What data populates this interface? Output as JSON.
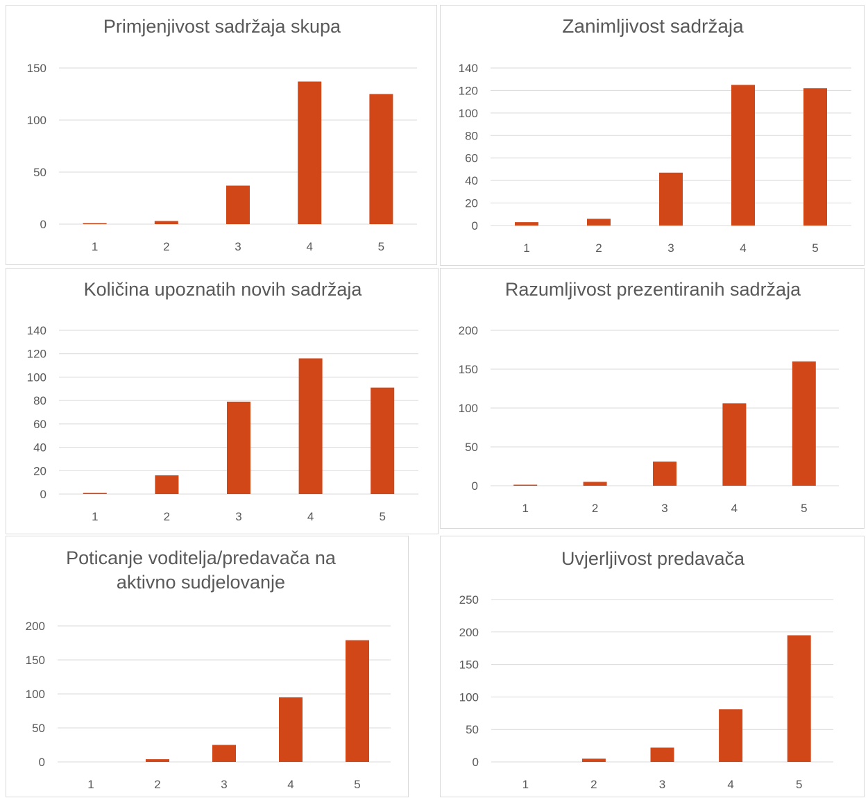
{
  "colors": {
    "bar": "#d24718",
    "grid": "#d9d9d9",
    "text": "#595959"
  },
  "chart_data": [
    {
      "type": "bar",
      "title": "Primjenjivost sadržaja skupa",
      "categories": [
        "1",
        "2",
        "3",
        "4",
        "5"
      ],
      "values": [
        1,
        3,
        37,
        137,
        125
      ],
      "ylim": [
        0,
        150
      ],
      "yticks": [
        "0",
        "50",
        "100",
        "150"
      ],
      "grid": true,
      "legend": "none"
    },
    {
      "type": "bar",
      "title": "Zanimljivost sadržaja",
      "categories": [
        "1",
        "2",
        "3",
        "4",
        "5"
      ],
      "values": [
        3,
        6,
        47,
        125,
        122
      ],
      "ylim": [
        0,
        140
      ],
      "yticks": [
        "0",
        "20",
        "40",
        "60",
        "80",
        "100",
        "120",
        "140"
      ],
      "grid": true,
      "legend": "none"
    },
    {
      "type": "bar",
      "title": "Količina upoznatih novih sadržaja",
      "categories": [
        "1",
        "2",
        "3",
        "4",
        "5"
      ],
      "values": [
        1,
        16,
        79,
        116,
        91
      ],
      "ylim": [
        0,
        140
      ],
      "yticks": [
        "0",
        "20",
        "40",
        "60",
        "80",
        "100",
        "120",
        "140"
      ],
      "grid": true,
      "legend": "none"
    },
    {
      "type": "bar",
      "title": "Razumljivost prezentiranih sadržaja",
      "categories": [
        "1",
        "2",
        "3",
        "4",
        "5"
      ],
      "values": [
        1,
        5,
        31,
        106,
        160
      ],
      "ylim": [
        0,
        200
      ],
      "yticks": [
        "0",
        "50",
        "100",
        "150",
        "200"
      ],
      "grid": true,
      "legend": "none"
    },
    {
      "type": "bar",
      "title": "Poticanje voditelja/predavača na aktivno sudjelovanje",
      "title_lines": [
        "Poticanje voditelja/predavača na",
        "aktivno sudjelovanje"
      ],
      "categories": [
        "1",
        "2",
        "3",
        "4",
        "5"
      ],
      "values": [
        0,
        4,
        25,
        95,
        179
      ],
      "ylim": [
        0,
        200
      ],
      "yticks": [
        "0",
        "50",
        "100",
        "150",
        "200"
      ],
      "grid": true,
      "legend": "none"
    },
    {
      "type": "bar",
      "title": "Uvjerljivost predavača",
      "categories": [
        "1",
        "2",
        "3",
        "4",
        "5"
      ],
      "values": [
        0,
        5,
        22,
        81,
        195
      ],
      "ylim": [
        0,
        250
      ],
      "yticks": [
        "0",
        "50",
        "100",
        "150",
        "200",
        "250"
      ],
      "grid": true,
      "legend": "none"
    }
  ]
}
